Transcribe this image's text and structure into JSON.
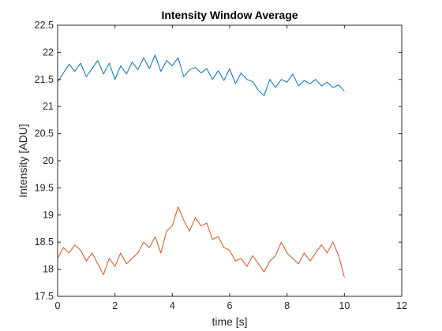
{
  "chart_data": {
    "type": "line",
    "title": "Intensity Window Average",
    "xlabel": "time [s]",
    "ylabel": "Intensity [ADU]",
    "xlim": [
      0,
      12
    ],
    "ylim": [
      17.5,
      22.5
    ],
    "xticks": [
      "0",
      "2",
      "4",
      "6",
      "8",
      "10",
      "12"
    ],
    "yticks": [
      "17.5",
      "18",
      "18.5",
      "19",
      "19.5",
      "20",
      "20.5",
      "21",
      "21.5",
      "22",
      "22.5"
    ],
    "grid": false,
    "legend": "none",
    "series": [
      {
        "color": "#0072BD",
        "x": [
          0.0,
          0.2,
          0.4,
          0.6,
          0.8,
          1.0,
          1.2,
          1.4,
          1.6,
          1.8,
          2.0,
          2.2,
          2.4,
          2.6,
          2.8,
          3.0,
          3.2,
          3.4,
          3.6,
          3.8,
          4.0,
          4.2,
          4.4,
          4.6,
          4.8,
          5.0,
          5.2,
          5.4,
          5.6,
          5.8,
          6.0,
          6.2,
          6.4,
          6.6,
          6.8,
          7.0,
          7.2,
          7.4,
          7.6,
          7.8,
          8.0,
          8.2,
          8.4,
          8.6,
          8.8,
          9.0,
          9.2,
          9.4,
          9.6,
          9.8,
          10.0
        ],
        "y": [
          21.45,
          21.62,
          21.78,
          21.65,
          21.8,
          21.55,
          21.7,
          21.85,
          21.6,
          21.8,
          21.5,
          21.75,
          21.6,
          21.82,
          21.68,
          21.9,
          21.7,
          21.95,
          21.65,
          21.85,
          21.75,
          21.9,
          21.55,
          21.68,
          21.72,
          21.62,
          21.7,
          21.5,
          21.66,
          21.48,
          21.7,
          21.42,
          21.62,
          21.5,
          21.46,
          21.3,
          21.2,
          21.5,
          21.35,
          21.5,
          21.45,
          21.6,
          21.38,
          21.48,
          21.42,
          21.5,
          21.38,
          21.45,
          21.35,
          21.4,
          21.28
        ]
      },
      {
        "color": "#D95319",
        "x": [
          0.0,
          0.2,
          0.4,
          0.6,
          0.8,
          1.0,
          1.2,
          1.4,
          1.6,
          1.8,
          2.0,
          2.2,
          2.4,
          2.6,
          2.8,
          3.0,
          3.2,
          3.4,
          3.6,
          3.8,
          4.0,
          4.2,
          4.4,
          4.6,
          4.8,
          5.0,
          5.2,
          5.4,
          5.6,
          5.8,
          6.0,
          6.2,
          6.4,
          6.6,
          6.8,
          7.0,
          7.2,
          7.4,
          7.6,
          7.8,
          8.0,
          8.2,
          8.4,
          8.6,
          8.8,
          9.0,
          9.2,
          9.4,
          9.6,
          9.8,
          10.0
        ],
        "y": [
          18.2,
          18.4,
          18.3,
          18.45,
          18.35,
          18.15,
          18.3,
          18.1,
          17.9,
          18.2,
          18.05,
          18.3,
          18.1,
          18.2,
          18.3,
          18.5,
          18.4,
          18.6,
          18.3,
          18.7,
          18.8,
          19.15,
          18.9,
          18.7,
          18.95,
          18.8,
          18.85,
          18.55,
          18.6,
          18.4,
          18.35,
          18.15,
          18.2,
          18.05,
          18.25,
          18.1,
          17.95,
          18.15,
          18.25,
          18.5,
          18.3,
          18.2,
          18.1,
          18.3,
          18.15,
          18.3,
          18.45,
          18.3,
          18.5,
          18.25,
          17.85
        ]
      }
    ]
  }
}
